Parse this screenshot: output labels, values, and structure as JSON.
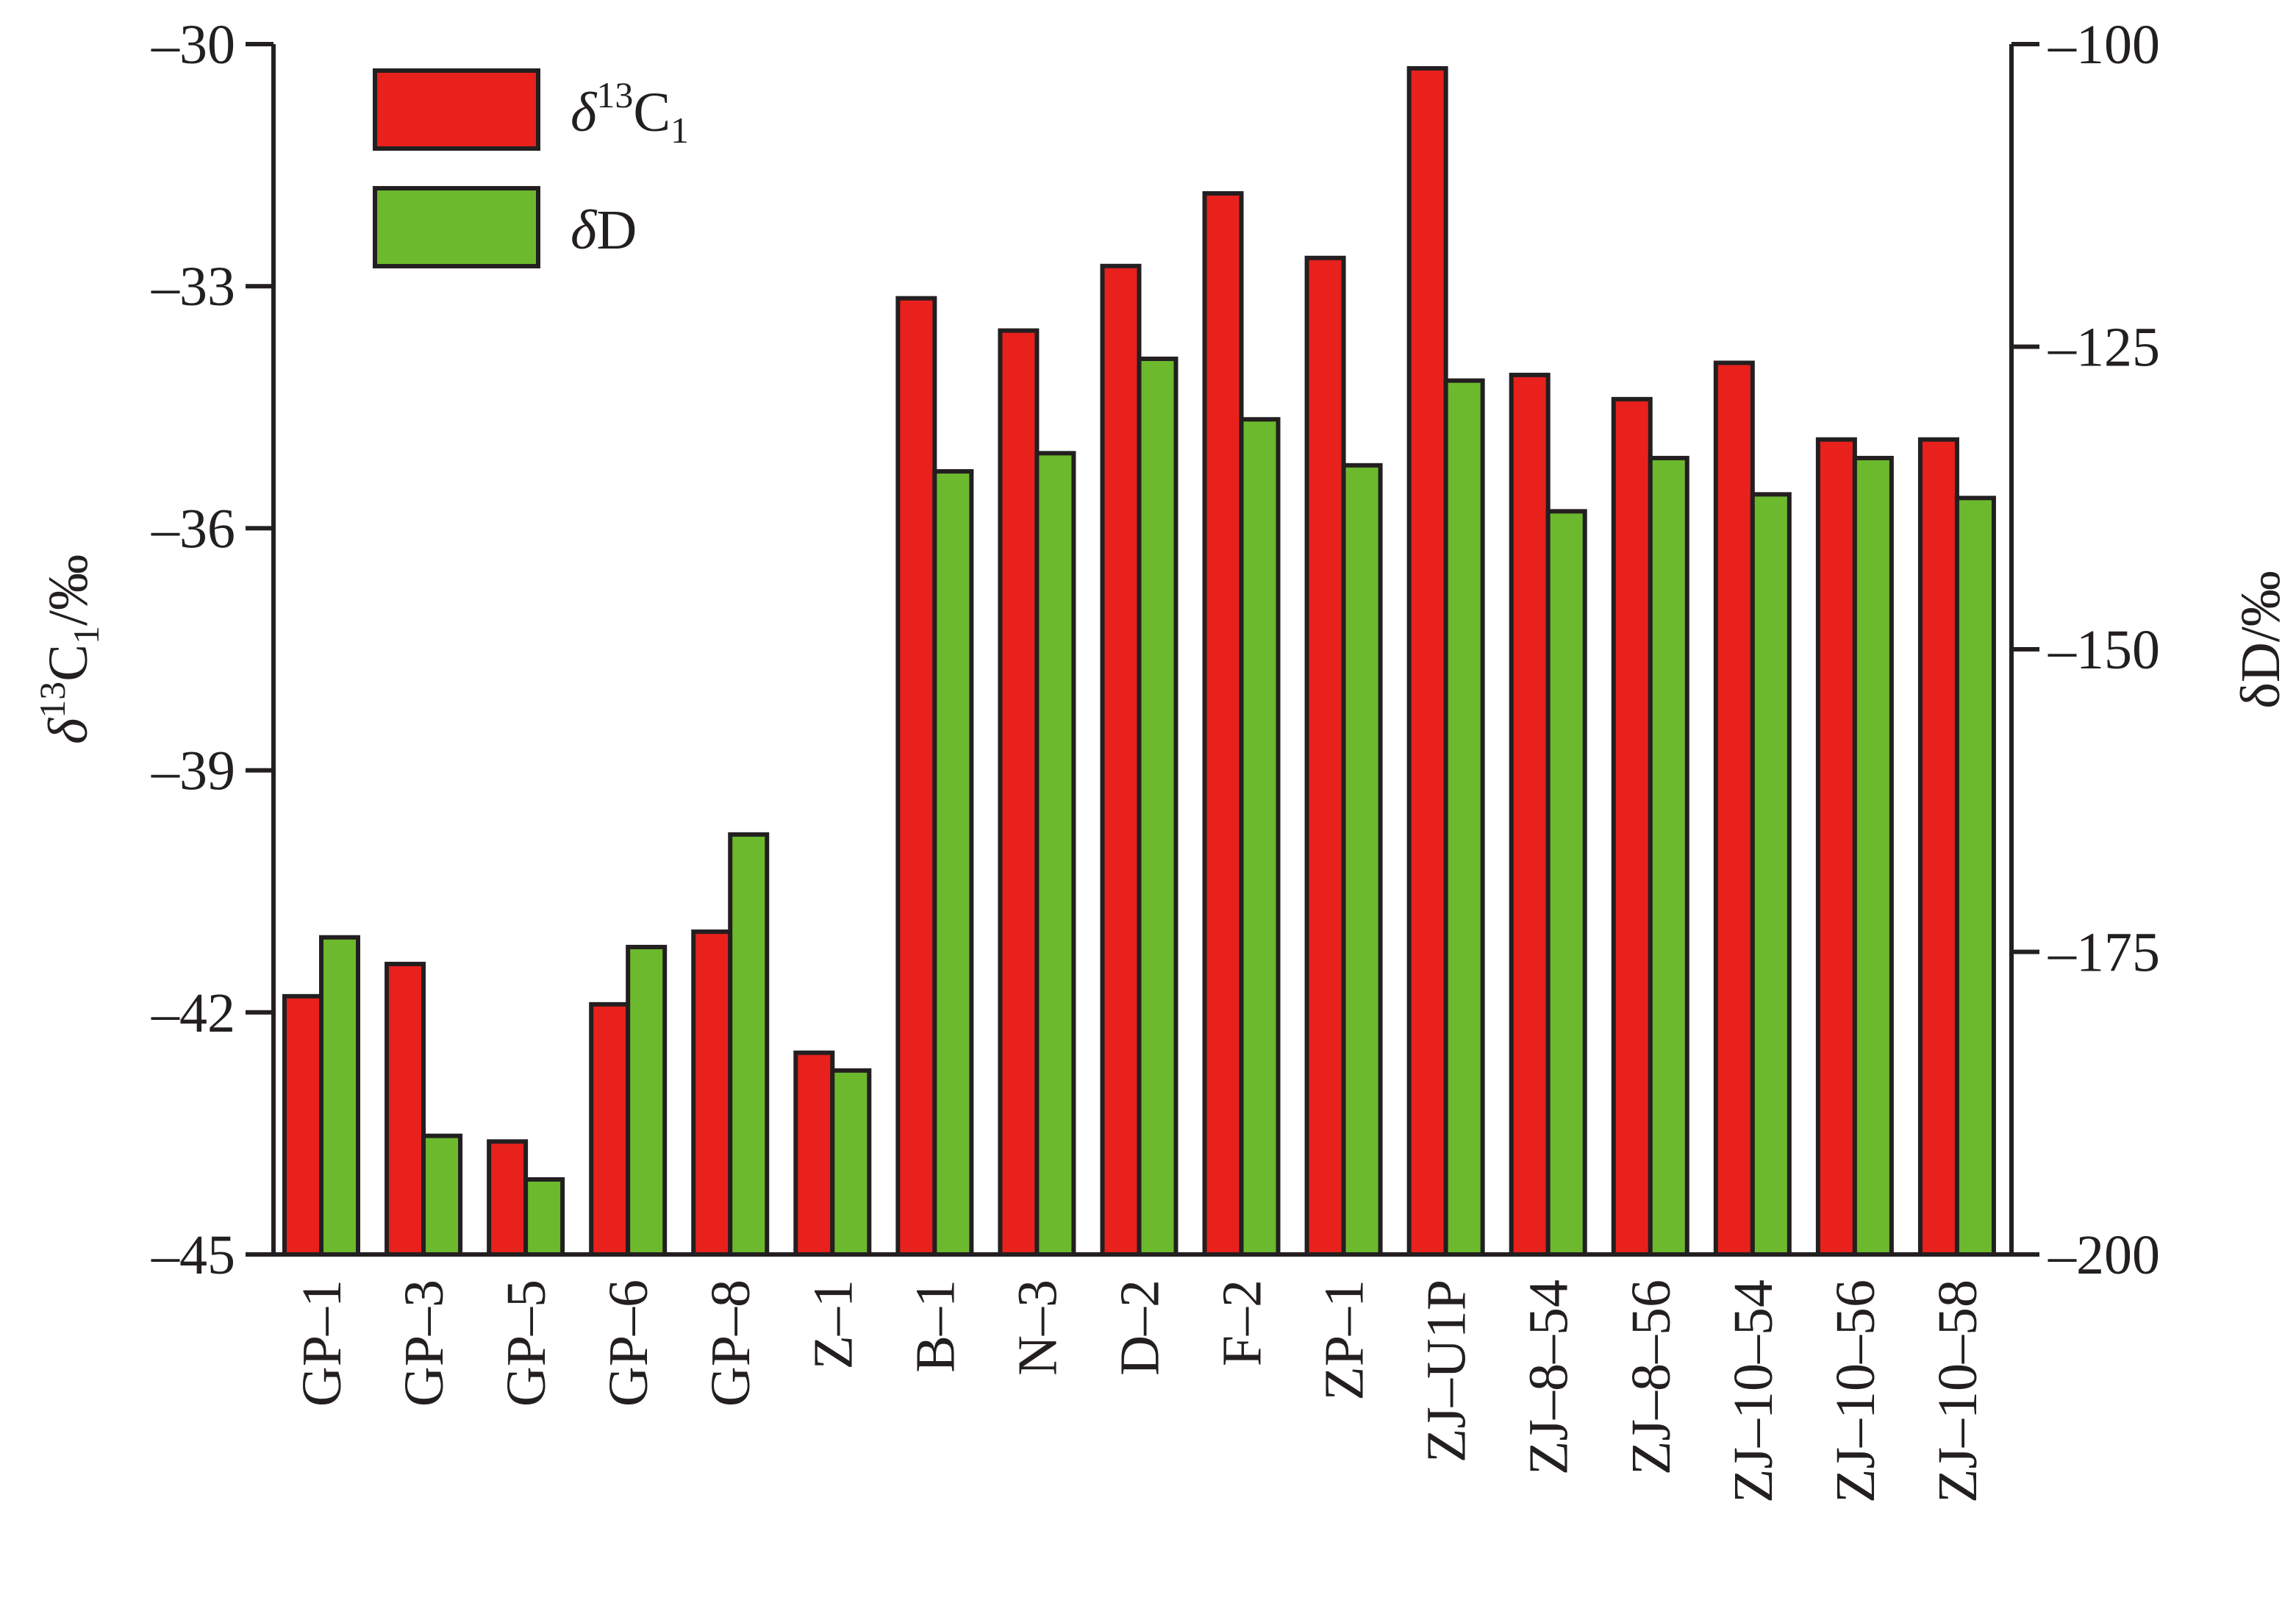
{
  "chart_data": {
    "type": "bar",
    "categories": [
      "GP–1",
      "GP–3",
      "GP–5",
      "GP–6",
      "GP–8",
      "Z–1",
      "B–1",
      "N–3",
      "D–2",
      "F–2",
      "ZP–1",
      "ZJ–U1P",
      "ZJ–8–54",
      "ZJ–8–56",
      "ZJ–10–54",
      "ZJ–10–56",
      "ZJ–10–58"
    ],
    "series": [
      {
        "name": "δ13C1",
        "axis": "left",
        "color": "#e8211d",
        "values": [
          -41.8,
          -41.4,
          -43.6,
          -41.9,
          -41.0,
          -42.5,
          -33.15,
          -33.55,
          -32.75,
          -31.85,
          -32.65,
          -30.3,
          -34.1,
          -34.4,
          -33.95,
          -34.9,
          -34.9
        ]
      },
      {
        "name": "δD",
        "axis": "right",
        "color": "#6cb92e",
        "values": [
          -173.8,
          -190.2,
          -193.8,
          -174.6,
          -165.3,
          -184.8,
          -135.3,
          -133.8,
          -126.0,
          -131.0,
          -134.8,
          -127.8,
          -138.6,
          -134.2,
          -137.2,
          -134.2,
          -137.5
        ]
      }
    ],
    "y_left": {
      "label_main": "δ",
      "label_sup": "13",
      "label_rest": "C",
      "label_sub": "1",
      "label_unit": "/‰",
      "ylim": [
        -45,
        -30
      ],
      "ticks": [
        -30,
        -33,
        -36,
        -39,
        -42,
        -45
      ],
      "tick_labels": [
        "–30",
        "–33",
        "–36",
        "–39",
        "–42",
        "–45"
      ]
    },
    "y_right": {
      "label": "δD/‰",
      "ylim": [
        -200,
        -100
      ],
      "ticks": [
        -100,
        -125,
        -150,
        -175,
        -200
      ],
      "tick_labels": [
        "–100",
        "–125",
        "–150",
        "–175",
        "–200"
      ]
    },
    "legend": {
      "placement": "top-left",
      "items": [
        {
          "main": "δ",
          "sup": "13",
          "rest": "C",
          "sub": "1"
        },
        {
          "main": "δ",
          "sup": "",
          "rest": "D",
          "sub": ""
        }
      ]
    },
    "grid": false
  }
}
